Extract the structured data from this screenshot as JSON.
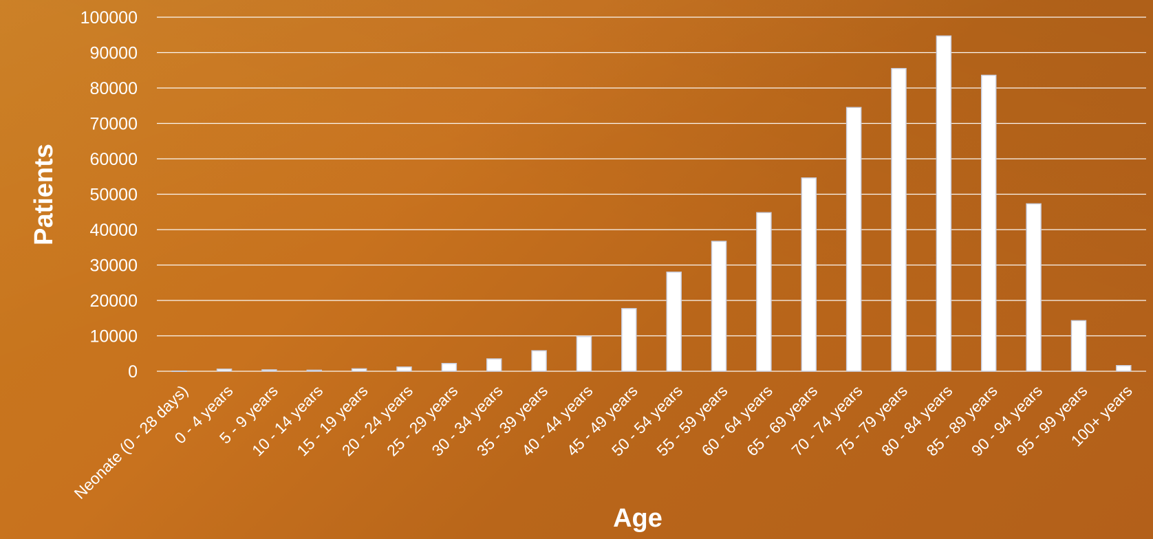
{
  "chart_data": {
    "type": "bar",
    "title": "",
    "xlabel": "Age",
    "ylabel": "Patients",
    "ylim": [
      0,
      100000
    ],
    "yticks": [
      0,
      10000,
      20000,
      30000,
      40000,
      50000,
      60000,
      70000,
      80000,
      90000,
      100000
    ],
    "ytick_labels": [
      "0",
      "10000",
      "20000",
      "30000",
      "40000",
      "50000",
      "60000",
      "70000",
      "80000",
      "90000",
      "100000"
    ],
    "grid": true,
    "legend": "none",
    "categories": [
      "Neonate (0 - 28 days)",
      "0 - 4 years",
      "5 - 9 years",
      "10 - 14 years",
      "15 - 19 years",
      "20 - 24 years",
      "25 - 29 years",
      "30 - 34 years",
      "35 - 39 years",
      "40 - 44 years",
      "45 - 49 years",
      "50 - 54 years",
      "55 - 59 years",
      "60 - 64 years",
      "65 - 69 years",
      "70 - 74 years",
      "75 - 79 years",
      "80 - 84 years",
      "85 - 89 years",
      "90 - 94 years",
      "95 - 99 years",
      "100+ years"
    ],
    "values": [
      50,
      600,
      400,
      300,
      700,
      1200,
      2200,
      3500,
      5800,
      9800,
      17700,
      28000,
      36700,
      44800,
      54600,
      74500,
      85500,
      94700,
      83600,
      47300,
      14300,
      1600
    ],
    "colors": {
      "bar_fill": "#ffffff",
      "bar_stroke": "#c9cfe0",
      "text": "#ffffff",
      "background": "#c8721e"
    }
  }
}
